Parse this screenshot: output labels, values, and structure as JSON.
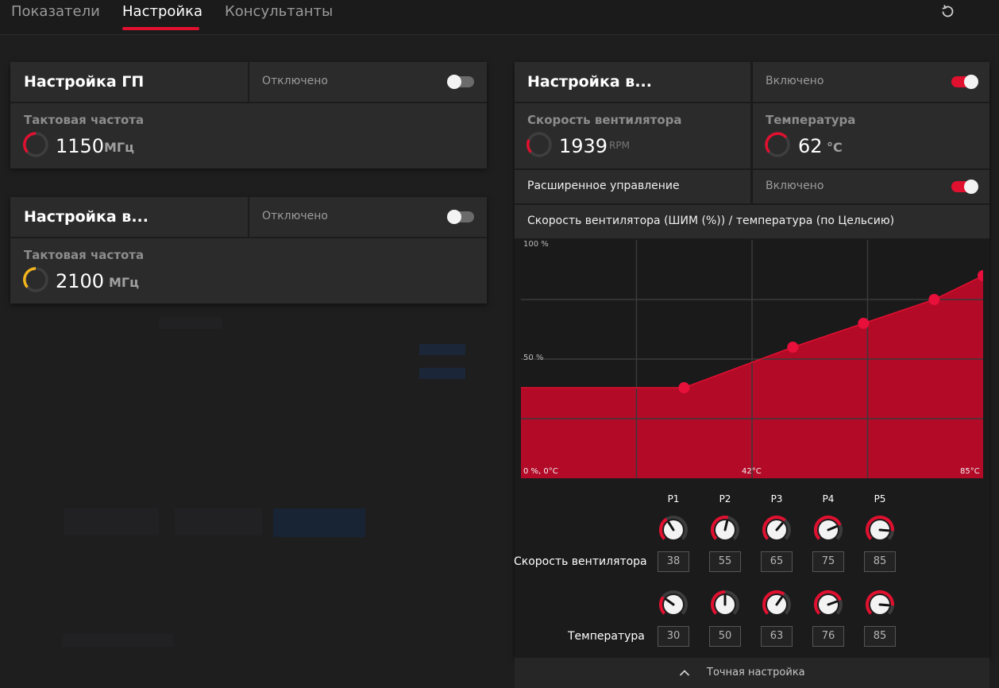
{
  "tabs": [
    {
      "label": "Показатели"
    },
    {
      "label": "Настройка"
    },
    {
      "label": "Консультанты"
    }
  ],
  "accent": "#e0102f",
  "gpu_panel": {
    "title": "Настройка ГП",
    "state": "Отключено",
    "freq_label": "Тактовая частота",
    "freq_value": "1150",
    "freq_unit": "МГц"
  },
  "vram_panel": {
    "title": "Настройка в...",
    "state": "Отключено",
    "freq_label": "Тактовая частота",
    "freq_value": "2100",
    "freq_unit": "МГц"
  },
  "fan_panel": {
    "title": "Настройка в...",
    "state": "Включено",
    "speed_label": "Скорость вентилятора",
    "speed_value": "1939",
    "speed_unit": "RPM",
    "temp_label": "Температура",
    "temp_value": "62",
    "temp_unit": "°C",
    "adv_label": "Расширенное управление",
    "adv_state": "Включено",
    "curve_title": "Скорость вентилятора (ШИМ (%)) / температура (по Цельсию)"
  },
  "chart_data": {
    "type": "area",
    "labels": {
      "y_top": "100 %",
      "y_mid": "50 %",
      "origin": "0 %, 0°C",
      "x_mid": "42°C",
      "x_max": "85°C"
    },
    "x": [
      30,
      50,
      63,
      76,
      85
    ],
    "y": [
      38,
      55,
      65,
      75,
      85
    ],
    "xlim": [
      0,
      85
    ],
    "ylim": [
      0,
      100
    ]
  },
  "knobs": {
    "points": [
      "P1",
      "P2",
      "P3",
      "P4",
      "P5"
    ],
    "speed_label": "Скорость вентилятора",
    "temp_label": "Температура",
    "speed": [
      "38",
      "55",
      "65",
      "75",
      "85"
    ],
    "temp": [
      "30",
      "50",
      "63",
      "76",
      "85"
    ]
  },
  "fine_tune": "Точная настройка"
}
